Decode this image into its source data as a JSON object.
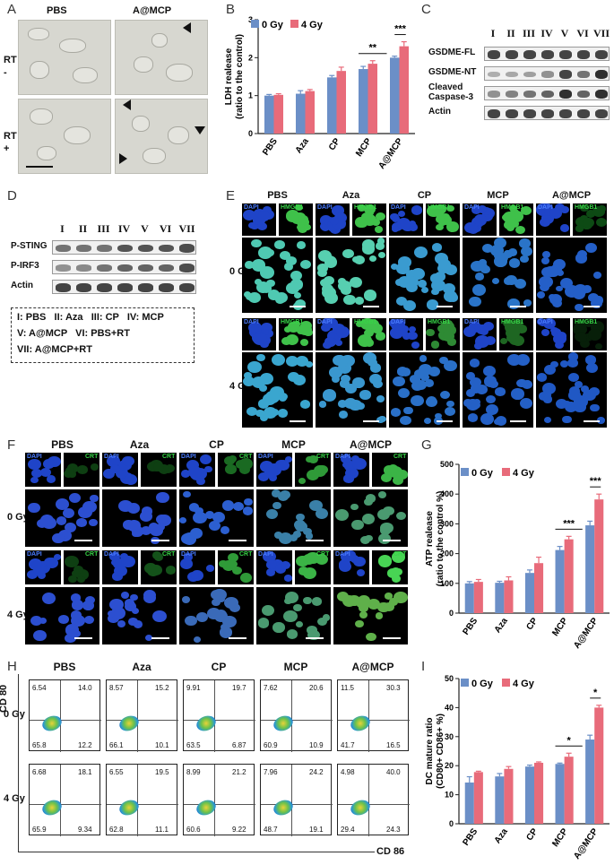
{
  "panels": {
    "A": "A",
    "B": "B",
    "C": "C",
    "D": "D",
    "E": "E",
    "F": "F",
    "G": "G",
    "H": "H",
    "I": "I"
  },
  "panel_a": {
    "col_pbs": "PBS",
    "col_amcp": "A@MCP",
    "row_rt_minus": "RT\n-",
    "row_rt_plus": "RT\n+"
  },
  "groups_short": [
    "PBS",
    "Aza",
    "CP",
    "MCP",
    "A@MCP"
  ],
  "legend": {
    "gy0": "0 Gy",
    "gy4": "4 Gy"
  },
  "colors": {
    "gy0": "#6b8fc7",
    "gy4": "#e86b7a"
  },
  "blot_c": {
    "lanes": [
      "I",
      "II",
      "III",
      "IV",
      "V",
      "VI",
      "VII"
    ],
    "rows": [
      "GSDME-FL",
      "GSDME-NT",
      "Cleaved\nCaspase-3",
      "Actin"
    ]
  },
  "blot_d": {
    "lanes": [
      "I",
      "II",
      "III",
      "IV",
      "V",
      "VI",
      "VII"
    ],
    "rows": [
      "P-STING",
      "P-IRF3",
      "Actin"
    ]
  },
  "legend_box": {
    "line1": "I: PBS   II: Aza   III: CP   IV: MCP",
    "line2": "V: A@MCP   VI: PBS+RT",
    "line3": "VII: A@MCP+RT"
  },
  "panel_e": {
    "dapi": "DAPI",
    "hmgb1": "HMGB1",
    "dose0": "0 Gy",
    "dose4": "4 Gy"
  },
  "panel_f": {
    "dapi": "DAPI",
    "crt": "CRT",
    "dose0": "0 Gy",
    "dose4": "4 Gy"
  },
  "panel_h": {
    "yaxis": "CD 80",
    "xaxis": "CD 86",
    "dose0": "0 Gy",
    "dose4": "4 Gy",
    "quadrants": {
      "0gy": [
        [
          "6.54",
          "14.0",
          "65.8",
          "12.2"
        ],
        [
          "8.57",
          "15.2",
          "66.1",
          "10.1"
        ],
        [
          "9.91",
          "19.7",
          "63.5",
          "6.87"
        ],
        [
          "7.62",
          "20.6",
          "60.9",
          "10.9"
        ],
        [
          "11.5",
          "30.3",
          "41.7",
          "16.5"
        ]
      ],
      "4gy": [
        [
          "6.68",
          "18.1",
          "65.9",
          "9.34"
        ],
        [
          "6.55",
          "19.5",
          "62.8",
          "11.1"
        ],
        [
          "8.99",
          "21.2",
          "60.6",
          "9.22"
        ],
        [
          "7.96",
          "24.2",
          "48.7",
          "19.1"
        ],
        [
          "4.98",
          "40.0",
          "29.4",
          "24.3"
        ]
      ]
    }
  },
  "chart_data": [
    {
      "type": "bar",
      "panel": "B",
      "categories": [
        "PBS",
        "Aza",
        "CP",
        "MCP",
        "A@MCP"
      ],
      "series": [
        {
          "name": "0 Gy",
          "values": [
            1.0,
            1.05,
            1.48,
            1.7,
            2.0
          ]
        },
        {
          "name": "4 Gy",
          "values": [
            1.02,
            1.12,
            1.65,
            1.84,
            2.3
          ]
        }
      ],
      "errors": [
        [
          0.03,
          0.08,
          0.05,
          0.07,
          0.04
        ],
        [
          0.03,
          0.04,
          0.1,
          0.08,
          0.12
        ]
      ],
      "ylabel": "LDH realease\n(ratio to the control)",
      "ylim": [
        0,
        3
      ],
      "yticks": [
        0,
        1,
        2,
        3
      ],
      "significance": [
        {
          "label": "**",
          "category": "MCP"
        },
        {
          "label": "***",
          "category": "A@MCP"
        }
      ]
    },
    {
      "type": "bar",
      "panel": "G",
      "categories": [
        "PBS",
        "Aza",
        "CP",
        "MCP",
        "A@MCP"
      ],
      "series": [
        {
          "name": "0 Gy",
          "values": [
            100,
            102,
            135,
            212,
            295
          ]
        },
        {
          "name": "4 Gy",
          "values": [
            105,
            110,
            168,
            248,
            382
          ]
        }
      ],
      "errors": [
        [
          6,
          5,
          10,
          12,
          14
        ],
        [
          8,
          12,
          20,
          10,
          18
        ]
      ],
      "ylabel": "ATP realease\n(ratio to the control %)",
      "ylim": [
        0,
        500
      ],
      "yticks": [
        0,
        100,
        200,
        300,
        400,
        500
      ],
      "significance": [
        {
          "label": "***",
          "category": "MCP"
        },
        {
          "label": "***",
          "category": "A@MCP"
        }
      ]
    },
    {
      "type": "bar",
      "panel": "I",
      "categories": [
        "PBS",
        "Aza",
        "CP",
        "MCP",
        "A@MCP"
      ],
      "series": [
        {
          "name": "0 Gy",
          "values": [
            14.2,
            16.3,
            19.7,
            20.6,
            29.0
          ]
        },
        {
          "name": "4 Gy",
          "values": [
            17.8,
            18.9,
            21.0,
            23.1,
            40.0
          ]
        }
      ],
      "errors": [
        [
          2.0,
          1.0,
          0.5,
          0.3,
          1.5
        ],
        [
          0.3,
          0.8,
          0.3,
          1.2,
          0.8
        ]
      ],
      "ylabel": "DC mature ratio\n(CD80+ CD86+ %)",
      "ylim": [
        0,
        50
      ],
      "yticks": [
        0,
        10,
        20,
        30,
        40,
        50
      ],
      "significance": [
        {
          "label": "*",
          "category": "MCP"
        },
        {
          "label": "*",
          "category": "A@MCP"
        }
      ]
    }
  ]
}
